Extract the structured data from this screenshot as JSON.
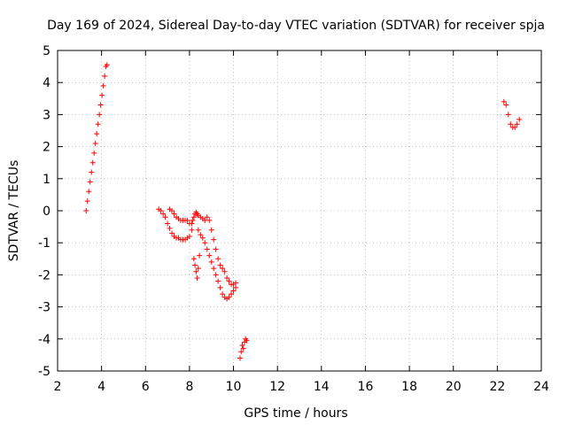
{
  "chart_data": {
    "type": "scatter",
    "title": "Day 169 of 2024, Sidereal Day-to-day VTEC variation (SDTVAR) for receiver spja",
    "xlabel": "GPS time / hours",
    "ylabel": "SDTVAR / TECUs",
    "xlim": [
      2,
      24
    ],
    "ylim": [
      -5,
      5
    ],
    "xticks": [
      2,
      4,
      6,
      8,
      10,
      12,
      14,
      16,
      18,
      20,
      22,
      24
    ],
    "yticks": [
      -5,
      -4,
      -3,
      -2,
      -1,
      0,
      1,
      2,
      3,
      4,
      5
    ],
    "grid": true,
    "marker": "+",
    "color": "#ff0000",
    "series": [
      {
        "name": "SDTVAR",
        "x": [
          3.3,
          3.36,
          3.42,
          3.48,
          3.54,
          3.6,
          3.66,
          3.72,
          3.78,
          3.84,
          3.9,
          3.96,
          4.02,
          4.08,
          4.14,
          4.2,
          4.25,
          6.6,
          6.7,
          6.8,
          6.9,
          7.0,
          7.1,
          7.2,
          7.3,
          7.4,
          7.5,
          7.6,
          7.7,
          7.8,
          7.9,
          8.0,
          7.1,
          7.2,
          7.3,
          7.4,
          7.5,
          7.6,
          7.7,
          7.8,
          7.9,
          8.0,
          8.1,
          8.1,
          8.15,
          8.2,
          8.25,
          8.3,
          8.35,
          8.4,
          8.5,
          8.6,
          8.7,
          8.8,
          8.9,
          9.0,
          9.1,
          9.2,
          9.3,
          9.4,
          9.5,
          9.6,
          9.7,
          9.8,
          9.9,
          10.0,
          10.1,
          8.4,
          8.5,
          8.6,
          8.7,
          8.8,
          8.9,
          9.0,
          9.1,
          9.2,
          9.3,
          9.4,
          9.5,
          9.6,
          9.7,
          9.8,
          9.9,
          10.0,
          10.1,
          8.2,
          8.25,
          8.3,
          8.35,
          8.4,
          8.45,
          10.3,
          10.35,
          10.4,
          10.45,
          10.5,
          10.55,
          10.6,
          22.3,
          22.4,
          22.5,
          22.6,
          22.7,
          22.8,
          22.9,
          23.0
        ],
        "y": [
          0.0,
          0.3,
          0.6,
          0.9,
          1.2,
          1.5,
          1.8,
          2.1,
          2.4,
          2.7,
          3.0,
          3.3,
          3.6,
          3.9,
          4.2,
          4.5,
          4.55,
          0.05,
          0.0,
          -0.1,
          -0.2,
          -0.4,
          -0.55,
          -0.7,
          -0.8,
          -0.85,
          -0.85,
          -0.9,
          -0.9,
          -0.9,
          -0.85,
          -0.8,
          0.05,
          0.0,
          -0.1,
          -0.2,
          -0.25,
          -0.3,
          -0.3,
          -0.3,
          -0.3,
          -0.4,
          -0.6,
          -0.4,
          -0.3,
          -0.2,
          -0.1,
          -0.05,
          -0.1,
          -0.15,
          -0.2,
          -0.25,
          -0.3,
          -0.2,
          -0.3,
          -0.6,
          -0.9,
          -1.2,
          -1.5,
          -1.7,
          -1.8,
          -1.9,
          -2.1,
          -2.2,
          -2.3,
          -2.3,
          -2.25,
          -0.6,
          -0.75,
          -0.85,
          -1.0,
          -1.2,
          -1.4,
          -1.6,
          -1.8,
          -2.0,
          -2.2,
          -2.4,
          -2.6,
          -2.7,
          -2.75,
          -2.7,
          -2.6,
          -2.5,
          -2.4,
          -1.5,
          -1.7,
          -1.9,
          -2.1,
          -1.8,
          -1.4,
          -4.6,
          -4.4,
          -4.2,
          -4.3,
          -4.1,
          -4.0,
          -4.05,
          3.4,
          3.3,
          3.0,
          2.7,
          2.6,
          2.6,
          2.7,
          2.85
        ]
      }
    ]
  }
}
